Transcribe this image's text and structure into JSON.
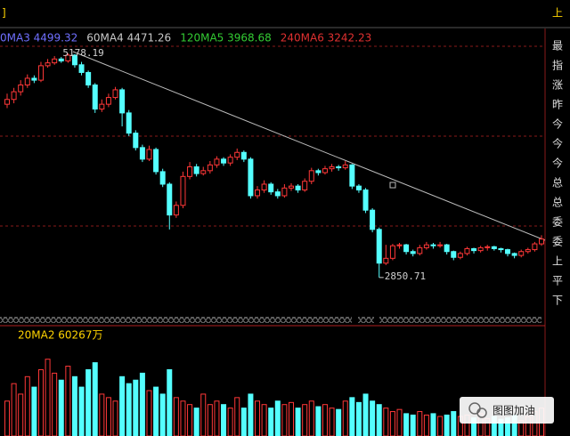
{
  "header": {
    "left": "]",
    "right": "上"
  },
  "side_labels": [
    "最",
    "指",
    "涨",
    "昨",
    "今",
    "今",
    "今",
    "总",
    "总",
    "委",
    "委",
    "上",
    "平",
    "下"
  ],
  "watermark": "图图加油",
  "chart_data": {
    "type": "candlestick",
    "legend": [
      {
        "name": "0MA3 4499.32",
        "color": "#7070ff"
      },
      {
        "name": "60MA4 4471.26",
        "color": "#c8c8c8"
      },
      {
        "name": "120MA5 3968.68",
        "color": "#33cc33"
      },
      {
        "name": "240MA6 3242.23",
        "color": "#e03030"
      }
    ],
    "annotations": [
      "5178.19",
      "2850.71"
    ],
    "volume_legend": "20MA2 60267万",
    "up_color": "#ff3838",
    "down_color": "#54ffff",
    "ylim": [
      2406,
      5363
    ],
    "vlim": [
      0,
      130000
    ],
    "open": [
      4650,
      4700,
      4780,
      4850,
      4920,
      4900,
      5050,
      5080,
      5120,
      5100,
      5160,
      5060,
      4980,
      4850,
      4600,
      4650,
      4720,
      4800,
      4560,
      4350,
      4200,
      4080,
      4180,
      3950,
      3820,
      3500,
      3600,
      3900,
      4000,
      3930,
      3960,
      4020,
      4080,
      4040,
      4100,
      4150,
      4080,
      3700,
      3760,
      3820,
      3740,
      3700,
      3780,
      3800,
      3760,
      3850,
      3960,
      3940,
      3980,
      4000,
      3990,
      4020,
      3800,
      3760,
      3550,
      3350,
      3000,
      3050,
      3180,
      3190,
      3120,
      3100,
      3160,
      3190,
      3180,
      3190,
      3120,
      3060,
      3100,
      3150,
      3130,
      3160,
      3170,
      3150,
      3140,
      3100,
      3080,
      3120,
      3140,
      3200
    ],
    "high": [
      4760,
      4820,
      4900,
      4960,
      4950,
      5090,
      5120,
      5150,
      5140,
      5178.19,
      5170,
      5090,
      5000,
      4870,
      4700,
      4760,
      4830,
      4820,
      4590,
      4380,
      4230,
      4220,
      4200,
      3980,
      3840,
      3640,
      3950,
      4050,
      4030,
      4000,
      4060,
      4110,
      4100,
      4130,
      4190,
      4170,
      4100,
      3800,
      3860,
      3840,
      3770,
      3820,
      3830,
      3820,
      3880,
      3990,
      3980,
      4010,
      4030,
      4020,
      4060,
      4030,
      3820,
      3780,
      3570,
      3370,
      3190,
      3200,
      3210,
      3200,
      3140,
      3190,
      3220,
      3210,
      3220,
      3200,
      3130,
      3120,
      3170,
      3160,
      3180,
      3190,
      3180,
      3160,
      3150,
      3110,
      3140,
      3160,
      3220,
      3290
    ],
    "low": [
      4610,
      4660,
      4740,
      4820,
      4870,
      4880,
      5030,
      5060,
      5080,
      5080,
      5030,
      4950,
      4820,
      4560,
      4570,
      4620,
      4700,
      4420,
      4320,
      4170,
      4050,
      4060,
      3920,
      3790,
      3350,
      3470,
      3570,
      3870,
      3900,
      3910,
      3930,
      3990,
      4010,
      4010,
      4070,
      4050,
      3670,
      3670,
      3730,
      3710,
      3670,
      3680,
      3750,
      3730,
      3740,
      3820,
      3910,
      3920,
      3950,
      3960,
      3970,
      3770,
      3730,
      3520,
      3320,
      2850.71,
      2980,
      3030,
      3150,
      3090,
      3070,
      3080,
      3140,
      3150,
      3160,
      3090,
      3030,
      3040,
      3080,
      3100,
      3110,
      3130,
      3130,
      3110,
      3070,
      3050,
      3060,
      3100,
      3120,
      3180
    ],
    "close": [
      4700,
      4780,
      4850,
      4920,
      4900,
      5050,
      5080,
      5120,
      5100,
      5160,
      5060,
      4980,
      4850,
      4600,
      4650,
      4720,
      4800,
      4560,
      4350,
      4200,
      4080,
      4180,
      3950,
      3820,
      3500,
      3600,
      3900,
      4000,
      3930,
      3960,
      4020,
      4080,
      4040,
      4100,
      4150,
      4080,
      3700,
      3760,
      3820,
      3740,
      3700,
      3780,
      3800,
      3760,
      3850,
      3960,
      3940,
      3980,
      4000,
      3990,
      4020,
      3800,
      3760,
      3550,
      3350,
      3000,
      3050,
      3180,
      3190,
      3120,
      3100,
      3160,
      3190,
      3180,
      3190,
      3120,
      3060,
      3100,
      3150,
      3130,
      3160,
      3170,
      3150,
      3140,
      3100,
      3080,
      3120,
      3140,
      3200,
      3250
    ],
    "volume": [
      50000,
      75000,
      60000,
      85000,
      70000,
      95000,
      110000,
      90000,
      80000,
      100000,
      85000,
      70000,
      95000,
      105000,
      60000,
      55000,
      50000,
      85000,
      75000,
      80000,
      90000,
      65000,
      70000,
      60000,
      95000,
      55000,
      50000,
      45000,
      40000,
      60000,
      45000,
      50000,
      45000,
      40000,
      55000,
      40000,
      60000,
      50000,
      45000,
      40000,
      50000,
      45000,
      48000,
      40000,
      45000,
      50000,
      42000,
      45000,
      40000,
      38000,
      50000,
      55000,
      48000,
      60000,
      50000,
      45000,
      40000,
      35000,
      38000,
      32000,
      30000,
      35000,
      30000,
      32000,
      28000,
      30000,
      35000,
      28000,
      30000,
      26000,
      32000,
      25000,
      28000,
      24000,
      26000,
      30000,
      22000,
      28000,
      35000,
      40000
    ]
  }
}
